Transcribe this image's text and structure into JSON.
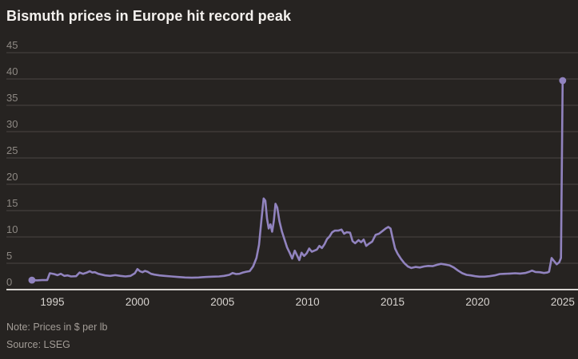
{
  "header": {
    "title": "Bismuth prices in Europe hit record peak"
  },
  "footer": {
    "note": "Note: Prices in $ per lb",
    "source": "Source: LSEG"
  },
  "colors": {
    "background": "#262321",
    "title": "#f4f1ee",
    "line": "#9183bf",
    "grid": "#4b4643",
    "axis_line": "#d8d5d1",
    "y_tick_label": "#8d8883",
    "x_tick_label": "#d8d4d0",
    "note_text": "#a39d97"
  },
  "chart_data": {
    "type": "line",
    "title": "Bismuth prices in Europe hit record peak",
    "xlabel": "",
    "ylabel": "",
    "note": "Prices in $ per lb",
    "source": "LSEG",
    "unit": "$ per lb",
    "grid": "horizontal",
    "legend": "none",
    "xlim": [
      1992.3,
      2025.9
    ],
    "ylim": [
      0,
      45
    ],
    "x_ticks": [
      1995,
      2000,
      2005,
      2010,
      2015,
      2020,
      2025
    ],
    "y_ticks": [
      0,
      5,
      10,
      15,
      20,
      25,
      30,
      35,
      40,
      45
    ],
    "series": [
      {
        "name": "Bismuth price in Europe",
        "start_marker": true,
        "end_marker": true,
        "x": [
          1993.8,
          1994.1,
          1994.4,
          1994.7,
          1994.85,
          1995.1,
          1995.3,
          1995.5,
          1995.7,
          1995.9,
          1996.1,
          1996.4,
          1996.6,
          1996.8,
          1997.0,
          1997.2,
          1997.35,
          1997.5,
          1997.7,
          1997.9,
          1998.1,
          1998.4,
          1998.7,
          1999.0,
          1999.3,
          1999.6,
          1999.85,
          2000.0,
          2000.15,
          2000.3,
          2000.45,
          2000.6,
          2000.8,
          2001.0,
          2001.3,
          2001.6,
          2002.0,
          2002.4,
          2002.8,
          2003.2,
          2003.6,
          2004.0,
          2004.4,
          2004.8,
          2005.1,
          2005.4,
          2005.6,
          2005.8,
          2006.0,
          2006.2,
          2006.4,
          2006.6,
          2006.8,
          2007.0,
          2007.15,
          2007.3,
          2007.42,
          2007.52,
          2007.62,
          2007.72,
          2007.82,
          2007.92,
          2008.02,
          2008.12,
          2008.22,
          2008.35,
          2008.5,
          2008.65,
          2008.8,
          2008.95,
          2009.1,
          2009.25,
          2009.4,
          2009.52,
          2009.65,
          2009.8,
          2009.95,
          2010.1,
          2010.25,
          2010.4,
          2010.55,
          2010.7,
          2010.85,
          2011.0,
          2011.15,
          2011.3,
          2011.45,
          2011.6,
          2011.8,
          2012.0,
          2012.15,
          2012.3,
          2012.5,
          2012.65,
          2012.8,
          2013.0,
          2013.15,
          2013.3,
          2013.45,
          2013.6,
          2013.8,
          2014.0,
          2014.2,
          2014.4,
          2014.6,
          2014.75,
          2014.88,
          2015.0,
          2015.15,
          2015.3,
          2015.5,
          2015.7,
          2015.9,
          2016.1,
          2016.35,
          2016.6,
          2016.85,
          2017.1,
          2017.35,
          2017.6,
          2017.85,
          2018.1,
          2018.35,
          2018.6,
          2018.85,
          2019.1,
          2019.35,
          2019.6,
          2019.85,
          2020.1,
          2020.4,
          2020.7,
          2021.0,
          2021.3,
          2021.6,
          2021.9,
          2022.2,
          2022.5,
          2022.8,
          2023.0,
          2023.2,
          2023.4,
          2023.65,
          2023.9,
          2024.1,
          2024.2,
          2024.35,
          2024.5,
          2024.65,
          2024.8,
          2024.9,
          2025.0
        ],
        "values": [
          1.8,
          1.75,
          1.8,
          1.8,
          3.1,
          2.95,
          2.75,
          3.0,
          2.6,
          2.7,
          2.5,
          2.55,
          3.25,
          3.0,
          3.2,
          3.5,
          3.25,
          3.3,
          3.0,
          2.85,
          2.7,
          2.6,
          2.75,
          2.6,
          2.5,
          2.6,
          3.1,
          3.9,
          3.5,
          3.3,
          3.55,
          3.4,
          3.0,
          2.85,
          2.7,
          2.6,
          2.5,
          2.4,
          2.3,
          2.25,
          2.3,
          2.4,
          2.45,
          2.5,
          2.6,
          2.8,
          3.15,
          2.95,
          3.0,
          3.25,
          3.4,
          3.5,
          4.4,
          6.0,
          8.5,
          13.5,
          17.3,
          16.9,
          13.5,
          11.6,
          12.4,
          11.0,
          13.0,
          16.3,
          15.6,
          13.0,
          11.0,
          9.5,
          8.0,
          7.0,
          5.9,
          7.4,
          6.4,
          5.6,
          7.0,
          6.4,
          6.9,
          7.8,
          7.2,
          7.4,
          7.6,
          8.3,
          7.9,
          8.6,
          9.6,
          10.1,
          10.9,
          11.2,
          11.2,
          11.4,
          10.6,
          10.9,
          10.8,
          9.2,
          8.8,
          9.4,
          9.0,
          9.5,
          8.3,
          8.7,
          9.1,
          10.4,
          10.6,
          11.1,
          11.6,
          11.9,
          11.6,
          9.8,
          7.8,
          6.8,
          5.8,
          5.0,
          4.4,
          4.1,
          4.3,
          4.2,
          4.4,
          4.5,
          4.45,
          4.7,
          4.9,
          4.75,
          4.6,
          4.2,
          3.6,
          3.1,
          2.8,
          2.7,
          2.55,
          2.45,
          2.45,
          2.55,
          2.7,
          2.95,
          3.0,
          3.05,
          3.1,
          3.05,
          3.15,
          3.35,
          3.6,
          3.35,
          3.3,
          3.15,
          3.25,
          3.4,
          6.0,
          5.4,
          4.8,
          5.2,
          6.0,
          39.7
        ]
      }
    ]
  }
}
